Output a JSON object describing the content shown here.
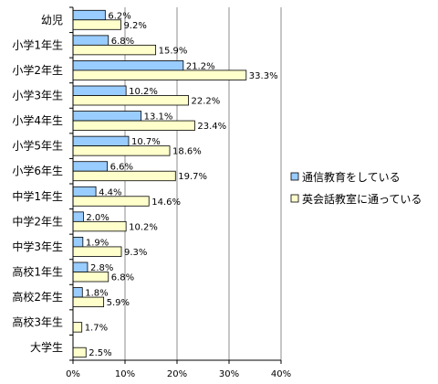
{
  "chart_data": {
    "type": "bar",
    "orientation": "horizontal",
    "categories": [
      "幼児",
      "小学1年生",
      "小学2年生",
      "小学3年生",
      "小学4年生",
      "小学5年生",
      "小学6年生",
      "中学1年生",
      "中学2年生",
      "中学3年生",
      "高校1年生",
      "高校2年生",
      "高校3年生",
      "大学生"
    ],
    "series": [
      {
        "name": "通信教育をしている",
        "color": "#99ccff",
        "values": [
          6.2,
          6.8,
          21.2,
          10.2,
          13.1,
          10.7,
          6.6,
          4.4,
          2.0,
          1.9,
          2.8,
          1.8,
          null,
          null
        ],
        "labels": [
          "6.2%",
          "6.8%",
          "21.2%",
          "10.2%",
          "13.1%",
          "10.7%",
          "6.6%",
          "4.4%",
          "2.0%",
          "1.9%",
          "2.8%",
          "1.8%",
          "",
          ""
        ]
      },
      {
        "name": "英会話教室に通っている",
        "color": "#ffffcc",
        "values": [
          9.2,
          15.9,
          33.3,
          22.2,
          23.4,
          18.6,
          19.7,
          14.6,
          10.2,
          9.3,
          6.8,
          5.9,
          1.7,
          2.5
        ],
        "labels": [
          "9.2%",
          "15.9%",
          "33.3%",
          "22.2%",
          "23.4%",
          "18.6%",
          "19.7%",
          "14.6%",
          "10.2%",
          "9.3%",
          "6.8%",
          "5.9%",
          "1.7%",
          "2.5%"
        ]
      }
    ],
    "xlim": [
      0,
      40
    ],
    "xticks": [
      "0%",
      "10%",
      "20%",
      "30%",
      "40%"
    ],
    "grid": true,
    "legend_position": "right"
  }
}
